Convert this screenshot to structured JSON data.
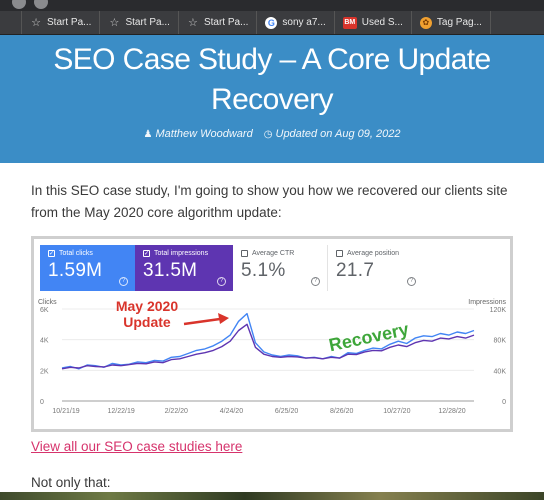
{
  "bookmarks": [
    {
      "icon": "star-icon",
      "label": "Start Pa..."
    },
    {
      "icon": "star-icon",
      "label": "Start Pa..."
    },
    {
      "icon": "star-icon",
      "label": "Start Pa..."
    },
    {
      "icon": "google-icon",
      "label": "sony a7..."
    },
    {
      "icon": "bm-logo-icon",
      "label": "Used S..."
    },
    {
      "icon": "tag-icon",
      "label": "Tag Pag..."
    }
  ],
  "hero": {
    "title": "SEO Case Study – A Core Update Recovery",
    "author": "Matthew Woodward",
    "updated": "Updated on Aug 09, 2022",
    "background": "#3b8dc6"
  },
  "intro": "In this SEO case study, I'm going to show you how we recovered our clients site from the May 2020 core algorithm update:",
  "metrics": [
    {
      "label": "Total clicks",
      "value": "1.59M",
      "checked": true
    },
    {
      "label": "Total impressions",
      "value": "31.5M",
      "checked": true
    },
    {
      "label": "Average CTR",
      "value": "5.1%",
      "checked": false
    },
    {
      "label": "Average position",
      "value": "21.7",
      "checked": false
    }
  ],
  "chart_data": {
    "type": "line",
    "left_axis_title": "Clicks",
    "right_axis_title": "Impressions",
    "left_ticks": [
      "6K",
      "4K",
      "2K",
      "0"
    ],
    "right_ticks": [
      "120K",
      "80K",
      "40K",
      "0"
    ],
    "x_ticks": [
      "10/21/19",
      "12/22/19",
      "2/22/20",
      "4/24/20",
      "6/25/20",
      "8/26/20",
      "10/27/20",
      "12/28/20"
    ],
    "ylim_left": [
      0,
      6000
    ],
    "ylim_right": [
      0,
      120000
    ],
    "annotations": [
      "May 2020 Update",
      "Recovery"
    ],
    "series": [
      {
        "name": "Total clicks",
        "axis": "left",
        "color": "#4285f4",
        "values": [
          2150,
          2250,
          2100,
          2350,
          2300,
          2200,
          2450,
          2350,
          2400,
          2550,
          2500,
          2650,
          2600,
          2850,
          2900,
          3100,
          3300,
          3400,
          3600,
          3900,
          4300,
          5200,
          5700,
          3800,
          3200,
          3000,
          2900,
          3000,
          2950,
          2800,
          2850,
          2750,
          2900,
          2800,
          3150,
          3100,
          3300,
          3450,
          3400,
          3700,
          3900,
          3750,
          4100,
          4250,
          4200,
          4400,
          4300,
          4500,
          4400,
          4600
        ]
      },
      {
        "name": "Total impressions",
        "axis": "right",
        "color": "#5e35b1",
        "values": [
          42000,
          44000,
          43000,
          46000,
          45000,
          44500,
          47000,
          46000,
          47500,
          49000,
          48500,
          51000,
          50000,
          54000,
          55000,
          58000,
          61000,
          63000,
          66000,
          71000,
          78000,
          92000,
          100000,
          70000,
          61000,
          58000,
          57000,
          58000,
          57500,
          56000,
          56500,
          55000,
          57000,
          56000,
          61000,
          60500,
          64000,
          66000,
          65500,
          70000,
          73000,
          71000,
          76000,
          79000,
          78000,
          82000,
          81000,
          84000,
          82000,
          86000
        ]
      }
    ]
  },
  "link": "View all our SEO case studies here",
  "note": "Not only that:"
}
